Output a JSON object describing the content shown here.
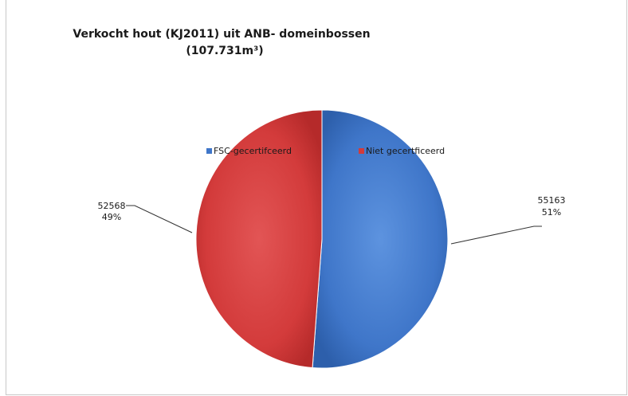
{
  "chart_data": {
    "type": "pie",
    "title_line1": "Verkocht hout (KJ2011) uit ANB- domeinbossen",
    "title_line2": "(107.731m³)",
    "slices": [
      {
        "name": "FSC-gecertifceerd",
        "value": 55163,
        "percent": "51%",
        "color": "#3f76c9"
      },
      {
        "name": "Niet gecertficeerd",
        "value": 52568,
        "percent": "49%",
        "color": "#d33b3b"
      }
    ],
    "legend_position": "inside-top"
  }
}
